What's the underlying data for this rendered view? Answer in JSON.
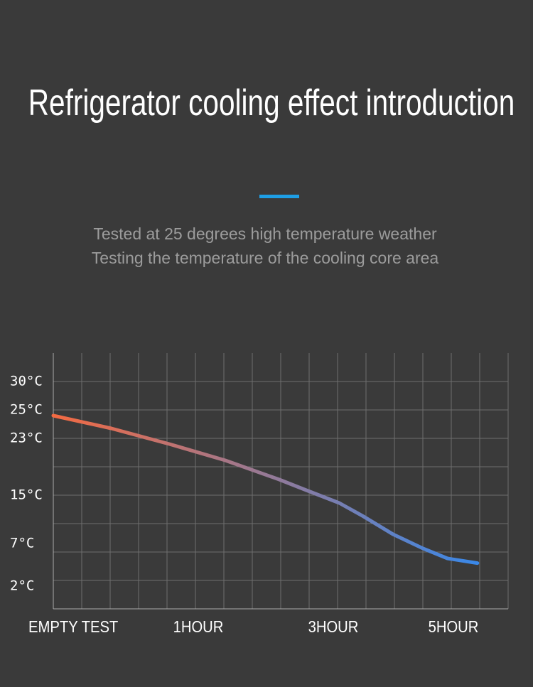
{
  "chart_data": {
    "type": "line",
    "title": "Refrigerator cooling effect introduction",
    "subtitle": [
      "Tested at 25 degrees high temperature weather",
      "Testing the temperature of the cooling core area"
    ],
    "x": [
      0,
      0.4,
      0.8,
      1.4,
      2.2,
      2.6,
      3.1,
      3.5,
      4.0,
      4.5,
      4.9,
      5.4
    ],
    "values": [
      24.6,
      23.7,
      22.2,
      19.9,
      17.2,
      15.7,
      13.7,
      11.5,
      8.5,
      6.4,
      5.25,
      4.7
    ],
    "gradient": [
      "#f36a42",
      "#3a88e8"
    ],
    "xticks": [
      {
        "value": 0,
        "label": "EMPTY TEST"
      },
      {
        "value": 1,
        "label": "1HOUR"
      },
      {
        "value": 3,
        "label": "3HOUR"
      },
      {
        "value": 5,
        "label": "5HOUR"
      }
    ],
    "yticks": [
      {
        "value": 30,
        "label": "30°C"
      },
      {
        "value": 25,
        "label": "25°C"
      },
      {
        "value": 23,
        "label": "23°C"
      },
      {
        "value": 15,
        "label": "15°C"
      },
      {
        "value": 7,
        "label": "7°C"
      },
      {
        "value": 2,
        "label": "2°C"
      }
    ],
    "grid": true
  }
}
